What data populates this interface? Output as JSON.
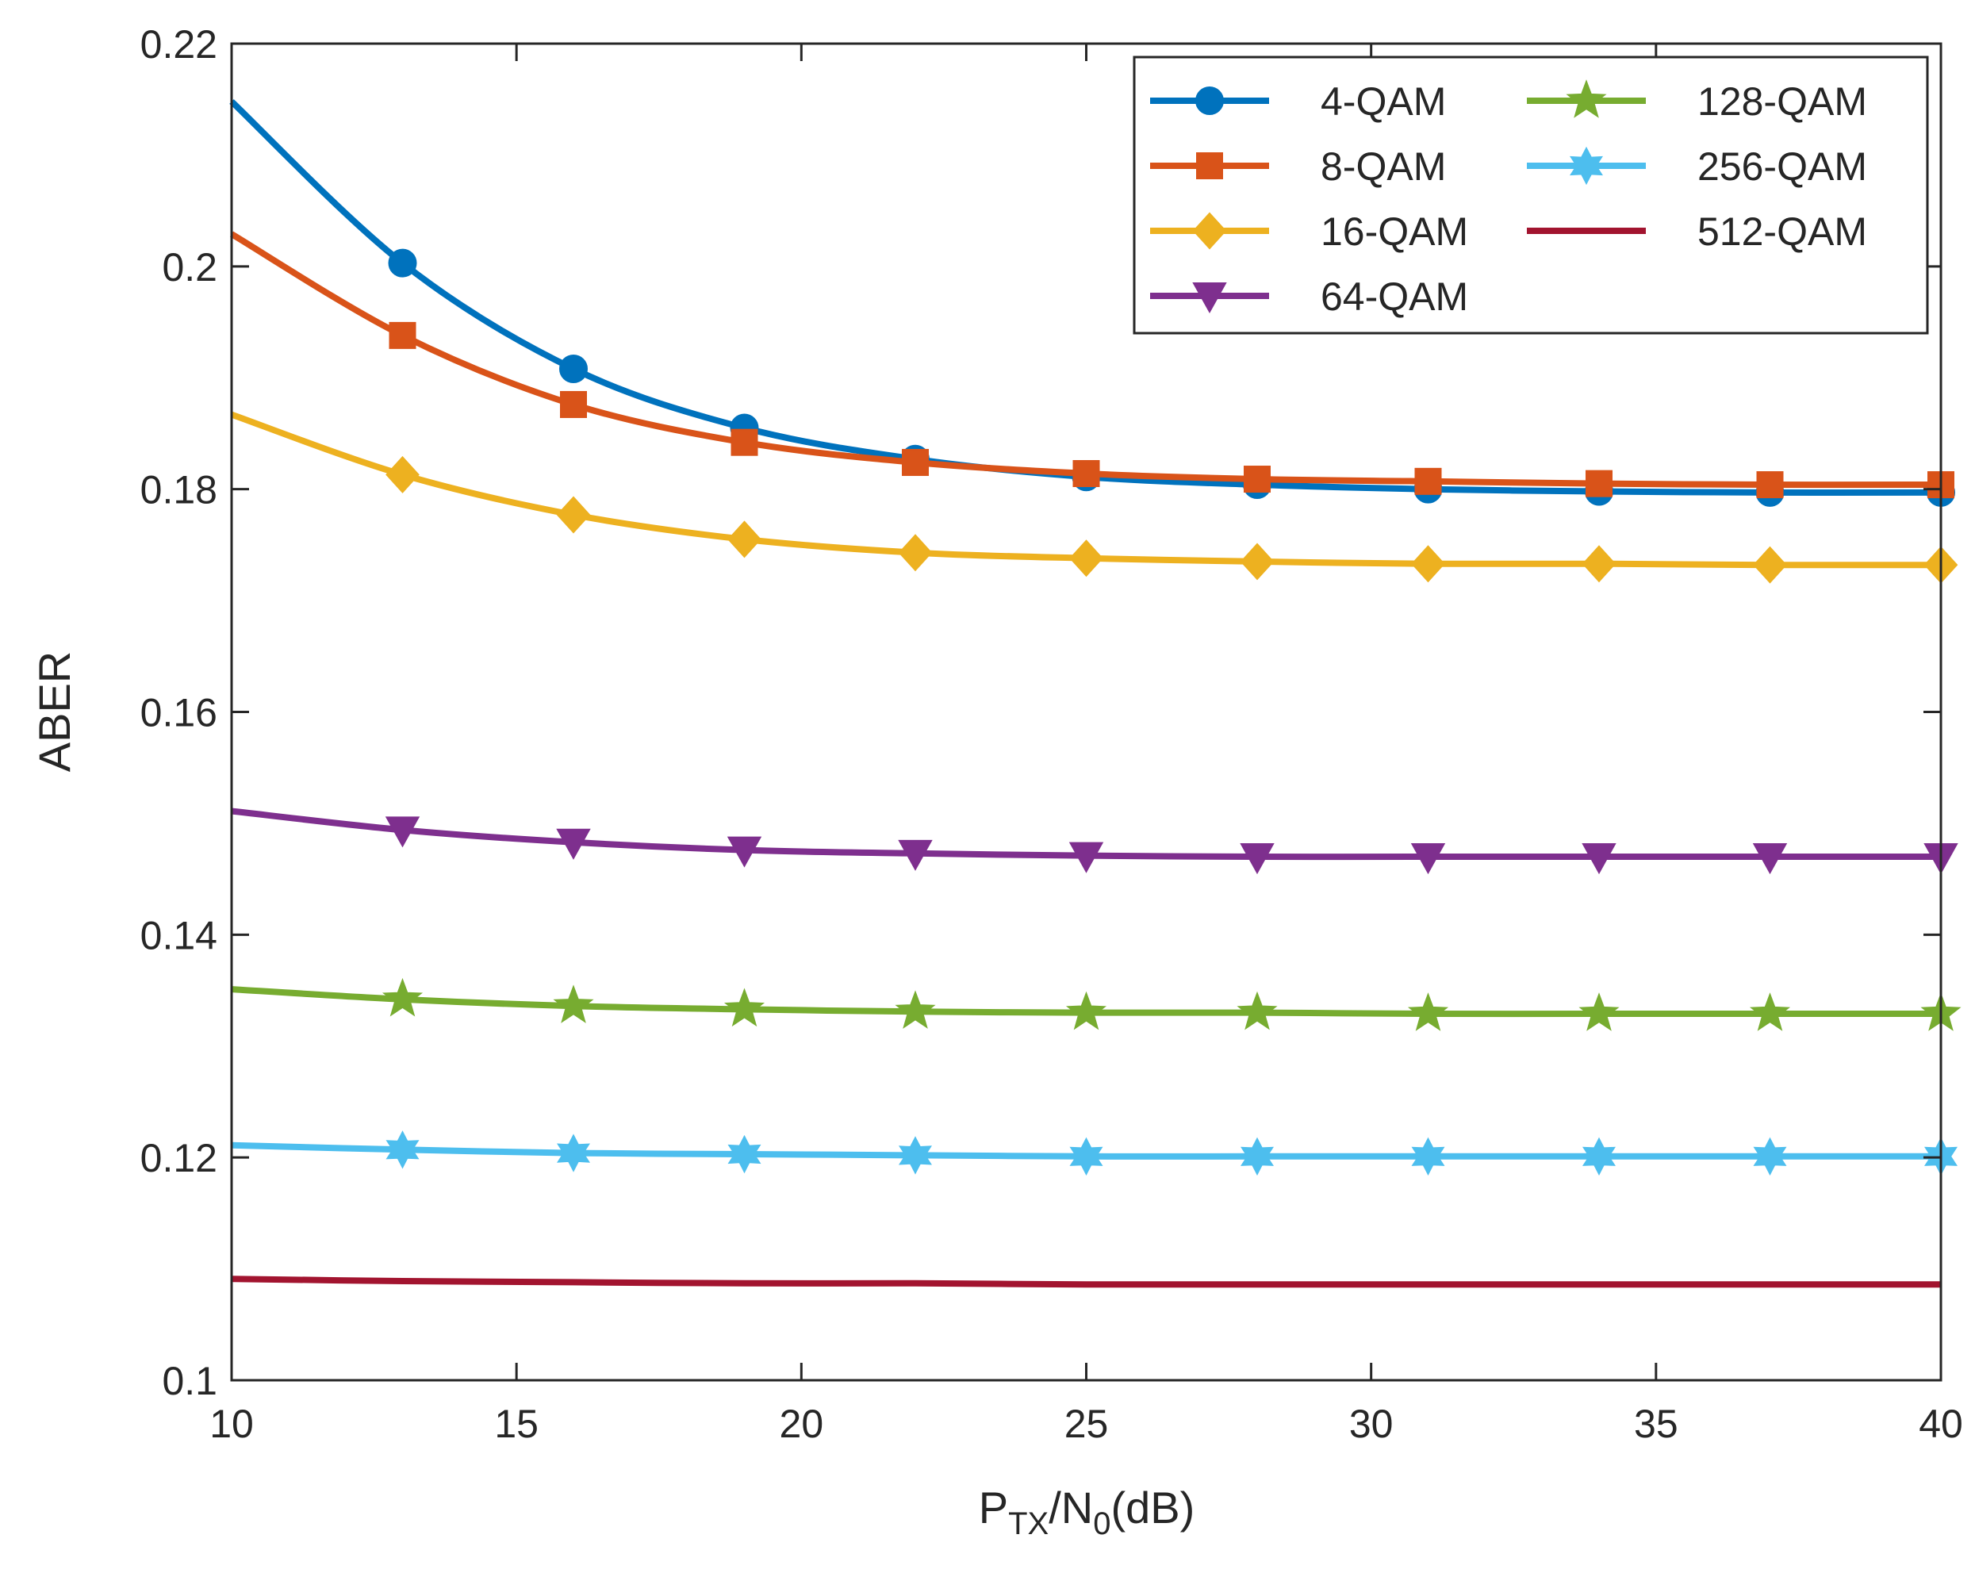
{
  "chart_data": {
    "type": "line",
    "title": "",
    "xlabel": {
      "base1": "P",
      "sub1": "TX",
      "mid": "/N",
      "sub2": "0",
      "tail": "(dB)"
    },
    "ylabel": "ABER",
    "xlim": [
      10,
      40
    ],
    "ylim": [
      0.1,
      0.22
    ],
    "xticks": [
      10,
      15,
      20,
      25,
      30,
      35,
      40
    ],
    "yticks": [
      0.1,
      0.12,
      0.14,
      0.16,
      0.18,
      0.2,
      0.22
    ],
    "xtick_labels": [
      "10",
      "15",
      "20",
      "25",
      "30",
      "35",
      "40"
    ],
    "ytick_labels": [
      "0.1",
      "0.12",
      "0.14",
      "0.16",
      "0.18",
      "0.2",
      "0.22"
    ],
    "legend_position": "top-right",
    "x": [
      10,
      13,
      16,
      19,
      22,
      25,
      28,
      31,
      34,
      37,
      40
    ],
    "series": [
      {
        "name": "4-QAM",
        "color": "#0072BD",
        "marker": "circle",
        "values": [
          0.2148,
          0.2003,
          0.1908,
          0.1855,
          0.1827,
          0.1811,
          0.1804,
          0.18,
          0.1798,
          0.1797,
          0.1797
        ]
      },
      {
        "name": "8-QAM",
        "color": "#D95319",
        "marker": "square",
        "values": [
          0.2029,
          0.1938,
          0.1876,
          0.1842,
          0.1824,
          0.1814,
          0.1809,
          0.1807,
          0.1805,
          0.1804,
          0.1804
        ]
      },
      {
        "name": "16-QAM",
        "color": "#EDB120",
        "marker": "diamond",
        "values": [
          0.1867,
          0.1813,
          0.1777,
          0.1755,
          0.1743,
          0.1738,
          0.1735,
          0.1733,
          0.1733,
          0.1732,
          0.1732
        ]
      },
      {
        "name": "64-QAM",
        "color": "#7E2F8E",
        "marker": "triangle-down",
        "values": [
          0.1511,
          0.1494,
          0.1483,
          0.1476,
          0.1473,
          0.1471,
          0.147,
          0.147,
          0.147,
          0.147,
          0.147
        ]
      },
      {
        "name": "128-QAM",
        "color": "#77AC30",
        "marker": "star",
        "values": [
          0.1351,
          0.1342,
          0.1336,
          0.1333,
          0.1331,
          0.133,
          0.133,
          0.1329,
          0.1329,
          0.1329,
          0.1329
        ]
      },
      {
        "name": "256-QAM",
        "color": "#4DBEEE",
        "marker": "hexagram",
        "values": [
          0.1211,
          0.1207,
          0.1204,
          0.1203,
          0.1202,
          0.1201,
          0.1201,
          0.1201,
          0.1201,
          0.1201,
          0.1201
        ]
      },
      {
        "name": "512-QAM",
        "color": "#A2142F",
        "marker": "none",
        "values": [
          0.1091,
          0.1089,
          0.1088,
          0.1087,
          0.1087,
          0.1086,
          0.1086,
          0.1086,
          0.1086,
          0.1086,
          0.1086
        ]
      }
    ]
  }
}
